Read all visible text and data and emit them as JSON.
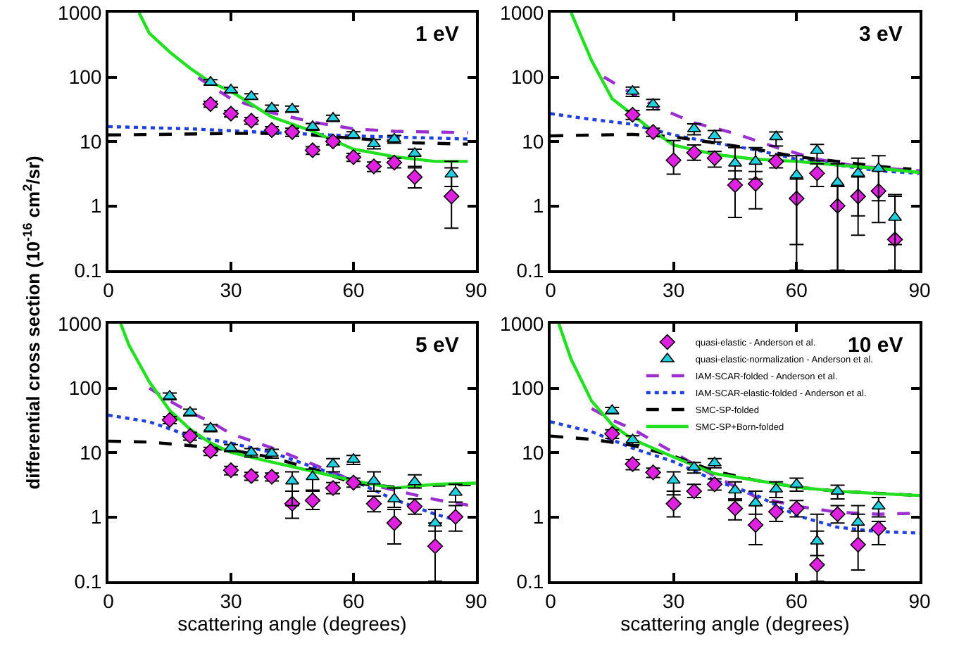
{
  "chart_data": [
    {
      "type": "scatter",
      "annotations": [
        "1 eV"
      ],
      "ylabel": "differential cross section (10$^{-16}$ cm$^{2}$/sr)",
      "xlim": [
        0,
        90
      ],
      "xticks": [
        0,
        30,
        60,
        90
      ],
      "ylim": [
        0.1,
        1000
      ],
      "yticks": [
        0.1,
        1,
        10,
        100,
        1000
      ],
      "log": "y",
      "grid": false,
      "legend": false,
      "series": [
        {
          "marker": "diamond",
          "color": "#e020e0",
          "x": [
            25,
            30,
            35,
            40,
            45,
            50,
            55,
            60,
            65,
            70,
            75,
            84
          ],
          "values": [
            38,
            27,
            21,
            15,
            14,
            7.3,
            10,
            5.7,
            4.1,
            4.7,
            2.8,
            1.4
          ],
          "errors": [
            4,
            3,
            2.5,
            2,
            2,
            1,
            1.2,
            0.8,
            0.7,
            0.8,
            [
              1.9,
              4.1
            ],
            [
              0.45,
              3.9
            ]
          ]
        },
        {
          "marker": "triangle",
          "color": "#20d0e0",
          "x": [
            25,
            30,
            35,
            40,
            45,
            50,
            55,
            60,
            65,
            70,
            75,
            84
          ],
          "values": [
            83,
            63,
            50,
            33,
            32,
            17,
            23,
            12.6,
            9.2,
            10.9,
            6.5,
            3.1
          ],
          "errors": [
            8,
            6,
            5,
            3.5,
            3.5,
            2,
            2.5,
            1.5,
            1.5,
            1.5,
            [
              3.9,
              7.6
            ],
            [
              2,
              4.9
            ]
          ]
        },
        {
          "type": "line",
          "line_style": "dashed",
          "color": "#9a30d0",
          "x": [
            22,
            30,
            40,
            50,
            60,
            70,
            88
          ],
          "values": [
            98,
            46,
            28,
            20,
            15.7,
            14.4,
            13.7
          ]
        },
        {
          "type": "line",
          "line_style": "dotted",
          "color": "#2040e0",
          "x": [
            0,
            20,
            40,
            60,
            88
          ],
          "values": [
            17,
            15.7,
            13.7,
            12.2,
            10.9
          ]
        },
        {
          "type": "line",
          "line_style": "dashed",
          "color": "#000000",
          "x": [
            0,
            30,
            45,
            60,
            75,
            88
          ],
          "values": [
            12.6,
            13.3,
            13.3,
            11.2,
            9.5,
            9.1
          ]
        },
        {
          "type": "line",
          "line_style": "solid",
          "color": "#20e020",
          "x": [
            7.5,
            10,
            15,
            20,
            25,
            30,
            40,
            50,
            60,
            70,
            80,
            88
          ],
          "values": [
            1000,
            480,
            245,
            137,
            83,
            60,
            24,
            14.4,
            7.6,
            5.8,
            4.9,
            4.9
          ]
        }
      ]
    },
    {
      "type": "scatter",
      "annotations": [
        "3 eV"
      ],
      "xlim": [
        0,
        90
      ],
      "xticks": [
        0,
        30,
        60,
        90
      ],
      "ylim": [
        0.1,
        1000
      ],
      "yticks": [
        0.1,
        1,
        10,
        100,
        1000
      ],
      "log": "y",
      "grid": false,
      "legend": false,
      "series": [
        {
          "marker": "diamond",
          "color": "#e020e0",
          "x": [
            20,
            25,
            30,
            35,
            40,
            45,
            50,
            55,
            60,
            65,
            70,
            75,
            80,
            84
          ],
          "values": [
            26,
            14,
            5.1,
            6.7,
            5.5,
            2.1,
            2.2,
            4.9,
            1.3,
            3.2,
            1.0,
            1.4,
            1.7,
            0.3
          ],
          "errors": [
            4,
            2,
            [
              3.1,
              10.3
            ],
            [
              5.1,
              8.8
            ],
            [
              4,
              7
            ],
            [
              0.66,
              3.5
            ],
            [
              0.9,
              3.4
            ],
            [
              3.9,
              6
            ],
            [
              0.1,
              2.6
            ],
            [
              2,
              4.5
            ],
            [
              0.1,
              2
            ],
            [
              0.35,
              2.8
            ],
            [
              0.55,
              3.5
            ],
            [
              0.1,
              1.4
            ]
          ]
        },
        {
          "marker": "triangle",
          "color": "#20d0e0",
          "x": [
            20,
            25,
            30,
            35,
            40,
            45,
            50,
            55,
            60,
            65,
            70,
            75,
            80,
            84
          ],
          "values": [
            60,
            38,
            null,
            15.7,
            12.3,
            4.6,
            4.9,
            11.8,
            3,
            7.2,
            2.3,
            3.2,
            3.8,
            0.66
          ],
          "errors": [
            10,
            7,
            null,
            3,
            2.5,
            [
              2.6,
              8
            ],
            [
              2.6,
              8
            ],
            [
              8.5,
              14
            ],
            [
              0.25,
              6
            ],
            [
              5,
              9
            ],
            [
              0.1,
              4.5
            ],
            [
              0.7,
              5.5
            ],
            [
              1.2,
              6
            ],
            [
              0.25,
              1.5
            ]
          ]
        },
        {
          "type": "line",
          "line_style": "dashed",
          "color": "#9a30d0",
          "x": [
            13,
            20,
            25,
            35,
            45,
            55,
            65,
            75,
            90
          ],
          "values": [
            100,
            55,
            36,
            19.5,
            13.3,
            8.1,
            5.3,
            4.1,
            3.5
          ]
        },
        {
          "type": "line",
          "line_style": "dotted",
          "color": "#2040e0",
          "x": [
            0,
            10,
            20,
            30,
            40,
            50,
            60,
            70,
            80,
            90
          ],
          "values": [
            27,
            22,
            18.5,
            12.6,
            9.5,
            7.4,
            5.3,
            4.3,
            3.5,
            3.2
          ]
        },
        {
          "type": "line",
          "line_style": "dashed",
          "color": "#000000",
          "x": [
            0,
            20,
            30,
            40,
            50,
            60,
            70,
            80,
            88
          ],
          "values": [
            12.2,
            12.9,
            11.8,
            9.5,
            7.6,
            5.8,
            4.9,
            4.1,
            3.7
          ]
        },
        {
          "type": "line",
          "line_style": "solid",
          "color": "#20e020",
          "x": [
            5,
            10,
            15,
            20,
            25,
            30,
            40,
            50,
            60,
            70,
            80,
            90
          ],
          "values": [
            1000,
            180,
            46,
            26,
            14.4,
            8.8,
            6.3,
            5.3,
            4.9,
            4.3,
            3.8,
            3.3
          ]
        }
      ]
    },
    {
      "type": "scatter",
      "annotations": [
        "5 eV"
      ],
      "xlabel": "scattering angle (degrees)",
      "xlim": [
        0,
        90
      ],
      "xticks": [
        0,
        30,
        60,
        90
      ],
      "ylim": [
        0.1,
        1000
      ],
      "yticks": [
        0.1,
        1,
        10,
        100,
        1000
      ],
      "log": "y",
      "grid": false,
      "legend": false,
      "series": [
        {
          "marker": "diamond",
          "color": "#e020e0",
          "x": [
            15,
            20,
            25,
            30,
            35,
            40,
            45,
            50,
            55,
            60,
            65,
            70,
            75,
            80,
            85
          ],
          "values": [
            32,
            18,
            10.5,
            5.3,
            4.3,
            4.2,
            1.6,
            1.8,
            2.8,
            3.4,
            1.6,
            0.8,
            1.45,
            0.35,
            1.0
          ],
          "errors": [
            4,
            2.5,
            1.5,
            0.8,
            0.6,
            0.6,
            [
              0.95,
              2.5
            ],
            [
              1.3,
              2.6
            ],
            [
              2.3,
              3.4
            ],
            [
              2.9,
              4
            ],
            [
              1.2,
              2.1
            ],
            [
              0.38,
              1.3
            ],
            [
              1.1,
              1.9
            ],
            [
              0.1,
              0.8
            ],
            [
              0.6,
              1.5
            ]
          ]
        },
        {
          "marker": "triangle",
          "color": "#20d0e0",
          "x": [
            15,
            20,
            25,
            30,
            35,
            40,
            45,
            50,
            55,
            60,
            65,
            70,
            75,
            80,
            85
          ],
          "values": [
            75,
            42,
            24,
            11.8,
            10,
            9.7,
            3.6,
            4.2,
            6.6,
            7.8,
            3.6,
            1.9,
            3.5,
            0.8,
            2.4
          ],
          "errors": [
            9,
            5,
            3,
            1.5,
            1.5,
            1.5,
            [
              1.5,
              5
            ],
            [
              2.5,
              5.5
            ],
            [
              5,
              8
            ],
            [
              6.5,
              9
            ],
            [
              2.5,
              5
            ],
            [
              1.4,
              2.8
            ],
            [
              2.8,
              4.5
            ],
            [
              0.6,
              1.3
            ],
            [
              1.7,
              3.2
            ]
          ]
        },
        {
          "type": "line",
          "line_style": "dashed",
          "color": "#9a30d0",
          "x": [
            10,
            15,
            20,
            25,
            30,
            40,
            50,
            60,
            70,
            80,
            90
          ],
          "values": [
            100,
            63,
            42,
            30,
            19.5,
            11.8,
            6.6,
            3.65,
            2.6,
            1.86,
            1.45
          ]
        },
        {
          "type": "line",
          "line_style": "dotted",
          "color": "#2040e0",
          "x": [
            0,
            10,
            20,
            30,
            40,
            50,
            60,
            70,
            80,
            85
          ],
          "values": [
            38,
            30,
            18,
            14,
            10,
            6.0,
            3.65,
            1.86,
            1.1,
            0.9
          ]
        },
        {
          "type": "line",
          "line_style": "dashed",
          "color": "#000000",
          "x": [
            0,
            10,
            20,
            30,
            40,
            50,
            60,
            70,
            80,
            90
          ],
          "values": [
            15,
            14.5,
            12.8,
            10.9,
            8.4,
            5.5,
            3.35,
            2.9,
            3.1,
            3.2
          ]
        },
        {
          "type": "line",
          "line_style": "solid",
          "color": "#20e020",
          "x": [
            3,
            5,
            10,
            15,
            20,
            25,
            30,
            40,
            50,
            60,
            70,
            80,
            90
          ],
          "values": [
            1000,
            470,
            125,
            45,
            23,
            14,
            10,
            7.1,
            5.1,
            3.65,
            2.8,
            3.2,
            3.35
          ]
        }
      ]
    },
    {
      "type": "scatter",
      "annotations": [
        "10 eV"
      ],
      "xlabel": "scattering angle (degrees)",
      "xlim": [
        0,
        90
      ],
      "xticks": [
        0,
        30,
        60,
        90
      ],
      "ylim": [
        0.1,
        1000
      ],
      "yticks": [
        0.1,
        1,
        10,
        100,
        1000
      ],
      "log": "y",
      "grid": false,
      "legend": "top right",
      "series": [
        {
          "name": "quasi-elastic - Anderson et al.",
          "marker": "diamond",
          "color": "#e020e0",
          "x": [
            15,
            20,
            25,
            30,
            35,
            40,
            45,
            50,
            55,
            60,
            65,
            70,
            75,
            80
          ],
          "values": [
            19.5,
            6.6,
            4.9,
            1.6,
            2.5,
            3.2,
            1.35,
            0.75,
            1.2,
            1.35,
            0.18,
            1.1,
            0.37,
            0.66
          ],
          "errors": [
            3,
            1.2,
            0.8,
            [
              1.0,
              2.5
            ],
            [
              2,
              3.2
            ],
            [
              2.6,
              3.9
            ],
            [
              0.9,
              1.9
            ],
            [
              0.37,
              1.5
            ],
            [
              0.85,
              1.7
            ],
            [
              1.0,
              1.8
            ],
            [
              0.1,
              1.1
            ],
            [
              0.8,
              1.5
            ],
            [
              0.15,
              1.5
            ],
            [
              0.37,
              0.85
            ]
          ]
        },
        {
          "name": "quasi-elastic-normalization - Anderson et al.",
          "marker": "triangle",
          "color": "#20d0e0",
          "x": [
            15,
            20,
            25,
            30,
            35,
            40,
            45,
            50,
            55,
            60,
            65,
            70,
            75,
            80
          ],
          "values": [
            45,
            15.7,
            null,
            3.7,
            5.9,
            6.9,
            2.6,
            1.65,
            2.7,
            3.2,
            0.42,
            2.5,
            0.82,
            1.47
          ],
          "errors": [
            5,
            2.5,
            null,
            [
              2.2,
              5
            ],
            [
              4.8,
              7
            ],
            [
              5.8,
              8
            ],
            [
              1.8,
              3.5
            ],
            [
              1.1,
              2.5
            ],
            [
              2,
              3.5
            ],
            [
              2.5,
              4
            ],
            [
              0.25,
              0.6
            ],
            [
              1.9,
              3.1
            ],
            [
              0.6,
              1.1
            ],
            [
              1,
              2
            ]
          ]
        },
        {
          "name": "IAM-SCAR-folded - Anderson et al.",
          "type": "line",
          "line_style": "dashed",
          "color": "#9a30d0",
          "x": [
            10,
            15,
            20,
            30,
            40,
            50,
            60,
            70,
            80,
            90
          ],
          "values": [
            48,
            32,
            23,
            10,
            4.3,
            2.05,
            1.47,
            1.18,
            1.1,
            1.14
          ]
        },
        {
          "name": "IAM-SCAR-elastic-folded - Anderson et al.",
          "type": "line",
          "line_style": "dotted",
          "color": "#2040e0",
          "x": [
            0,
            10,
            20,
            30,
            40,
            50,
            60,
            70,
            80,
            90
          ],
          "values": [
            30,
            21,
            11.7,
            7.2,
            3.7,
            2.2,
            1.05,
            0.69,
            0.59,
            0.56
          ]
        },
        {
          "name": "SMC-SP-folded",
          "type": "line",
          "line_style": "dashed",
          "color": "#000000",
          "x": [
            0,
            10,
            20,
            30,
            40,
            50,
            60,
            70,
            90
          ],
          "values": [
            18,
            16,
            12.9,
            8.8,
            5.1,
            3.7,
            2.9,
            2.5,
            2.15
          ]
        },
        {
          "name": "SMC-SP+Born-folded",
          "type": "line",
          "line_style": "solid",
          "color": "#20e020",
          "x": [
            2,
            5,
            10,
            15,
            20,
            30,
            40,
            50,
            60,
            70,
            80,
            90
          ],
          "values": [
            1000,
            280,
            63,
            27,
            16,
            8.5,
            4.7,
            3.7,
            2.9,
            2.5,
            2.3,
            2.15
          ]
        }
      ]
    }
  ]
}
